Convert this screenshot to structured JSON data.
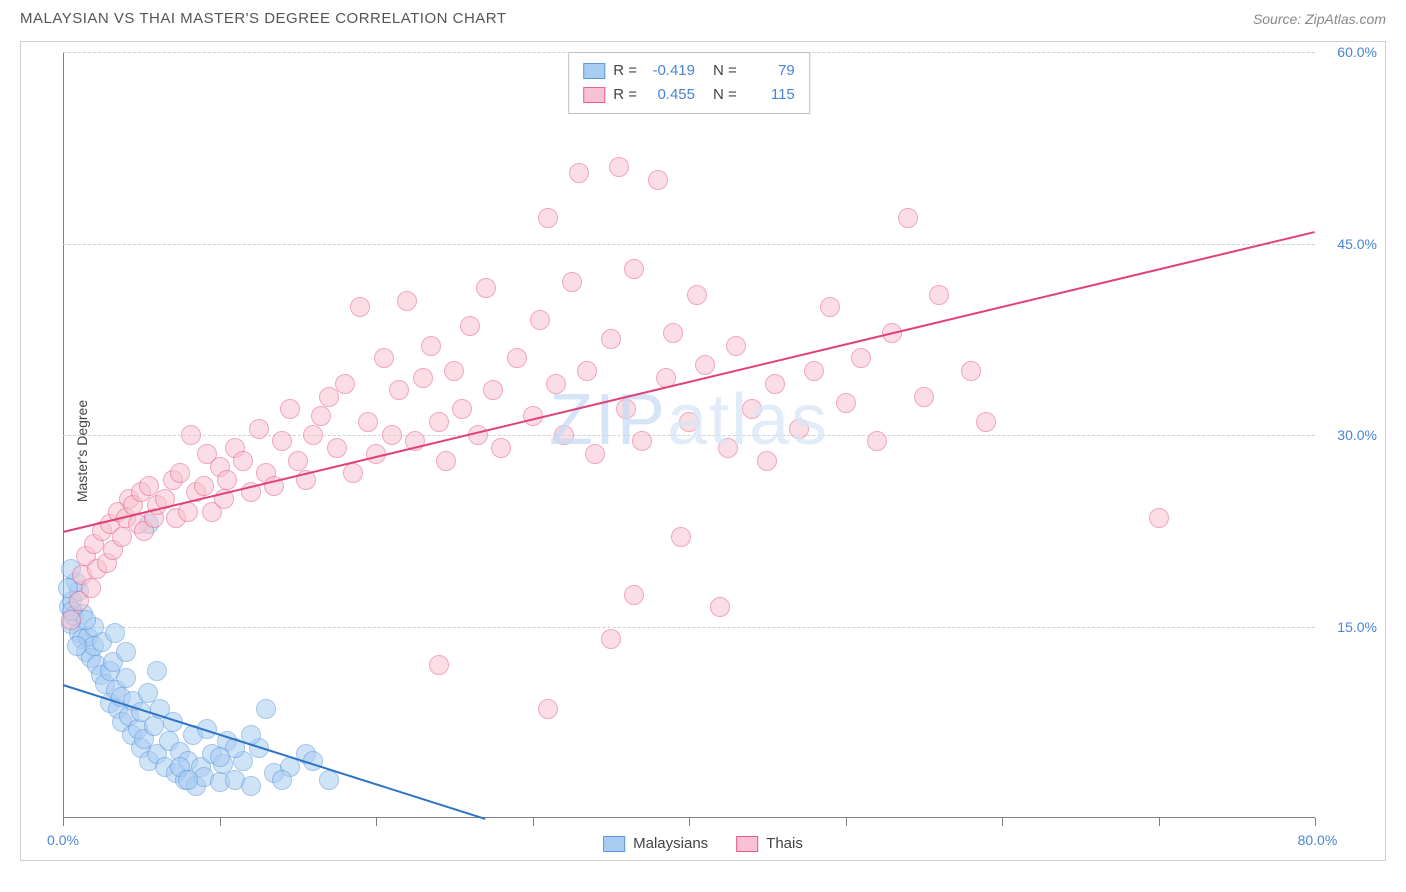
{
  "header": {
    "title": "MALAYSIAN VS THAI MASTER'S DEGREE CORRELATION CHART",
    "source_label": "Source: ZipAtlas.com"
  },
  "chart": {
    "type": "scatter",
    "ylabel": "Master's Degree",
    "watermark_prefix": "ZIP",
    "watermark_suffix": "atlas",
    "xlim": [
      0,
      80
    ],
    "ylim": [
      0,
      60
    ],
    "x_ticks": [
      0,
      10,
      20,
      30,
      40,
      50,
      60,
      70,
      80
    ],
    "x_tick_labels_shown": {
      "0": "0.0%",
      "80": "80.0%"
    },
    "y_ticks": [
      15,
      30,
      45,
      60
    ],
    "y_tick_labels": {
      "15": "15.0%",
      "30": "30.0%",
      "45": "45.0%",
      "60": "60.0%"
    },
    "grid_color": "#d0d0d0",
    "background_color": "#ffffff",
    "axis_label_color": "#4a84d6",
    "point_radius": 10,
    "point_opacity": 0.55,
    "series": [
      {
        "name": "Malaysians",
        "color_fill": "#a9cdf2",
        "color_stroke": "#5a98dd",
        "line_color": "#2d73c6",
        "r_label": "R =",
        "r_value": "-0.419",
        "n_label": "N =",
        "n_value": "79",
        "trend": {
          "x1": 0,
          "y1": 10.5,
          "x2": 27,
          "y2": 0
        },
        "points": [
          [
            0.4,
            16.5
          ],
          [
            0.5,
            15.2
          ],
          [
            0.6,
            17.0
          ],
          [
            0.7,
            15.8
          ],
          [
            1.0,
            14.5
          ],
          [
            1.2,
            14.0
          ],
          [
            1.5,
            13.0
          ],
          [
            1.6,
            14.2
          ],
          [
            1.8,
            12.5
          ],
          [
            2.0,
            13.5
          ],
          [
            2.2,
            12.0
          ],
          [
            2.4,
            11.2
          ],
          [
            2.5,
            13.8
          ],
          [
            2.7,
            10.5
          ],
          [
            3.0,
            11.5
          ],
          [
            3.0,
            9.0
          ],
          [
            3.2,
            12.2
          ],
          [
            3.4,
            10.0
          ],
          [
            3.5,
            8.5
          ],
          [
            3.7,
            9.5
          ],
          [
            3.8,
            7.5
          ],
          [
            4.0,
            11.0
          ],
          [
            4.2,
            8.0
          ],
          [
            4.4,
            6.5
          ],
          [
            4.5,
            9.2
          ],
          [
            4.8,
            7.0
          ],
          [
            5.0,
            8.3
          ],
          [
            5.0,
            5.5
          ],
          [
            5.2,
            6.2
          ],
          [
            5.4,
            9.8
          ],
          [
            5.5,
            4.5
          ],
          [
            5.8,
            7.2
          ],
          [
            6.0,
            5.0
          ],
          [
            6.2,
            8.5
          ],
          [
            6.5,
            4.0
          ],
          [
            6.8,
            6.0
          ],
          [
            7.0,
            7.5
          ],
          [
            7.2,
            3.5
          ],
          [
            7.5,
            5.2
          ],
          [
            7.8,
            3.0
          ],
          [
            8.0,
            4.5
          ],
          [
            8.3,
            6.5
          ],
          [
            8.5,
            2.5
          ],
          [
            8.8,
            4.0
          ],
          [
            9.0,
            3.2
          ],
          [
            9.5,
            5.0
          ],
          [
            10.0,
            2.8
          ],
          [
            10.2,
            4.2
          ],
          [
            10.5,
            6.0
          ],
          [
            11.0,
            3.0
          ],
          [
            11.5,
            4.5
          ],
          [
            12.0,
            2.5
          ],
          [
            12.5,
            5.5
          ],
          [
            13.0,
            8.5
          ],
          [
            13.5,
            3.5
          ],
          [
            14.5,
            4.0
          ],
          [
            15.5,
            5.0
          ],
          [
            17.0,
            3.0
          ],
          [
            5.5,
            23.0
          ],
          [
            1.0,
            17.8
          ],
          [
            1.3,
            16.0
          ],
          [
            0.8,
            18.5
          ],
          [
            0.5,
            19.5
          ],
          [
            0.3,
            18.0
          ],
          [
            0.6,
            16.2
          ],
          [
            2.0,
            15.0
          ],
          [
            1.5,
            15.5
          ],
          [
            0.9,
            13.5
          ],
          [
            3.3,
            14.5
          ],
          [
            4.0,
            13.0
          ],
          [
            6.0,
            11.5
          ],
          [
            16.0,
            4.5
          ],
          [
            12.0,
            6.5
          ],
          [
            9.2,
            7.0
          ],
          [
            7.5,
            4.0
          ],
          [
            11.0,
            5.5
          ],
          [
            14.0,
            3.0
          ],
          [
            8.0,
            3.0
          ],
          [
            10.0,
            4.8
          ]
        ]
      },
      {
        "name": "Thais",
        "color_fill": "#f7c2d1",
        "color_stroke": "#e65f8e",
        "line_color": "#e04177",
        "r_label": "R =",
        "r_value": "0.455",
        "n_label": "N =",
        "n_value": "115",
        "trend": {
          "x1": 0,
          "y1": 22.5,
          "x2": 80,
          "y2": 46
        },
        "points": [
          [
            0.5,
            15.5
          ],
          [
            1.0,
            17.0
          ],
          [
            1.2,
            19.0
          ],
          [
            1.5,
            20.5
          ],
          [
            1.8,
            18.0
          ],
          [
            2.0,
            21.5
          ],
          [
            2.2,
            19.5
          ],
          [
            2.5,
            22.5
          ],
          [
            2.8,
            20.0
          ],
          [
            3.0,
            23.0
          ],
          [
            3.2,
            21.0
          ],
          [
            3.5,
            24.0
          ],
          [
            3.8,
            22.0
          ],
          [
            4.0,
            23.5
          ],
          [
            4.2,
            25.0
          ],
          [
            4.5,
            24.5
          ],
          [
            4.8,
            23.0
          ],
          [
            5.0,
            25.5
          ],
          [
            5.2,
            22.5
          ],
          [
            5.5,
            26.0
          ],
          [
            5.8,
            23.5
          ],
          [
            6.0,
            24.5
          ],
          [
            6.5,
            25.0
          ],
          [
            7.0,
            26.5
          ],
          [
            7.2,
            23.5
          ],
          [
            7.5,
            27.0
          ],
          [
            8.0,
            24.0
          ],
          [
            8.2,
            30.0
          ],
          [
            8.5,
            25.5
          ],
          [
            9.0,
            26.0
          ],
          [
            9.2,
            28.5
          ],
          [
            9.5,
            24.0
          ],
          [
            10.0,
            27.5
          ],
          [
            10.3,
            25.0
          ],
          [
            10.5,
            26.5
          ],
          [
            11.0,
            29.0
          ],
          [
            11.5,
            28.0
          ],
          [
            12.0,
            25.5
          ],
          [
            12.5,
            30.5
          ],
          [
            13.0,
            27.0
          ],
          [
            13.5,
            26.0
          ],
          [
            14.0,
            29.5
          ],
          [
            14.5,
            32.0
          ],
          [
            15.0,
            28.0
          ],
          [
            15.5,
            26.5
          ],
          [
            16.0,
            30.0
          ],
          [
            16.5,
            31.5
          ],
          [
            17.0,
            33.0
          ],
          [
            17.5,
            29.0
          ],
          [
            18.0,
            34.0
          ],
          [
            18.5,
            27.0
          ],
          [
            19.0,
            40.0
          ],
          [
            19.5,
            31.0
          ],
          [
            20.0,
            28.5
          ],
          [
            20.5,
            36.0
          ],
          [
            21.0,
            30.0
          ],
          [
            21.5,
            33.5
          ],
          [
            22.0,
            40.5
          ],
          [
            22.5,
            29.5
          ],
          [
            23.0,
            34.5
          ],
          [
            23.5,
            37.0
          ],
          [
            24.0,
            31.0
          ],
          [
            24.5,
            28.0
          ],
          [
            25.0,
            35.0
          ],
          [
            25.5,
            32.0
          ],
          [
            26.0,
            38.5
          ],
          [
            26.5,
            30.0
          ],
          [
            27.0,
            41.5
          ],
          [
            27.5,
            33.5
          ],
          [
            28.0,
            29.0
          ],
          [
            29.0,
            36.0
          ],
          [
            30.0,
            31.5
          ],
          [
            30.5,
            39.0
          ],
          [
            31.0,
            47.0
          ],
          [
            31.5,
            34.0
          ],
          [
            32.0,
            30.0
          ],
          [
            32.5,
            42.0
          ],
          [
            33.0,
            50.5
          ],
          [
            33.5,
            35.0
          ],
          [
            34.0,
            28.5
          ],
          [
            35.0,
            37.5
          ],
          [
            35.5,
            51.0
          ],
          [
            36.0,
            32.0
          ],
          [
            36.5,
            43.0
          ],
          [
            37.0,
            29.5
          ],
          [
            38.0,
            50.0
          ],
          [
            38.5,
            34.5
          ],
          [
            39.0,
            38.0
          ],
          [
            39.5,
            22.0
          ],
          [
            40.0,
            31.0
          ],
          [
            40.5,
            41.0
          ],
          [
            41.0,
            35.5
          ],
          [
            42.0,
            16.5
          ],
          [
            42.5,
            29.0
          ],
          [
            43.0,
            37.0
          ],
          [
            44.0,
            32.0
          ],
          [
            45.0,
            28.0
          ],
          [
            45.5,
            34.0
          ],
          [
            47.0,
            30.5
          ],
          [
            48.0,
            35.0
          ],
          [
            49.0,
            40.0
          ],
          [
            50.0,
            32.5
          ],
          [
            51.0,
            36.0
          ],
          [
            52.0,
            29.5
          ],
          [
            53.0,
            38.0
          ],
          [
            54.0,
            47.0
          ],
          [
            55.0,
            33.0
          ],
          [
            56.0,
            41.0
          ],
          [
            58.0,
            35.0
          ],
          [
            59.0,
            31.0
          ],
          [
            31.0,
            8.5
          ],
          [
            35.0,
            14.0
          ],
          [
            36.5,
            17.5
          ],
          [
            24.0,
            12.0
          ],
          [
            70.0,
            23.5
          ]
        ]
      }
    ],
    "bottom_legend": [
      {
        "label": "Malaysians",
        "fill": "#a9cdf2",
        "stroke": "#5a98dd"
      },
      {
        "label": "Thais",
        "fill": "#f7c2d1",
        "stroke": "#e65f8e"
      }
    ]
  }
}
